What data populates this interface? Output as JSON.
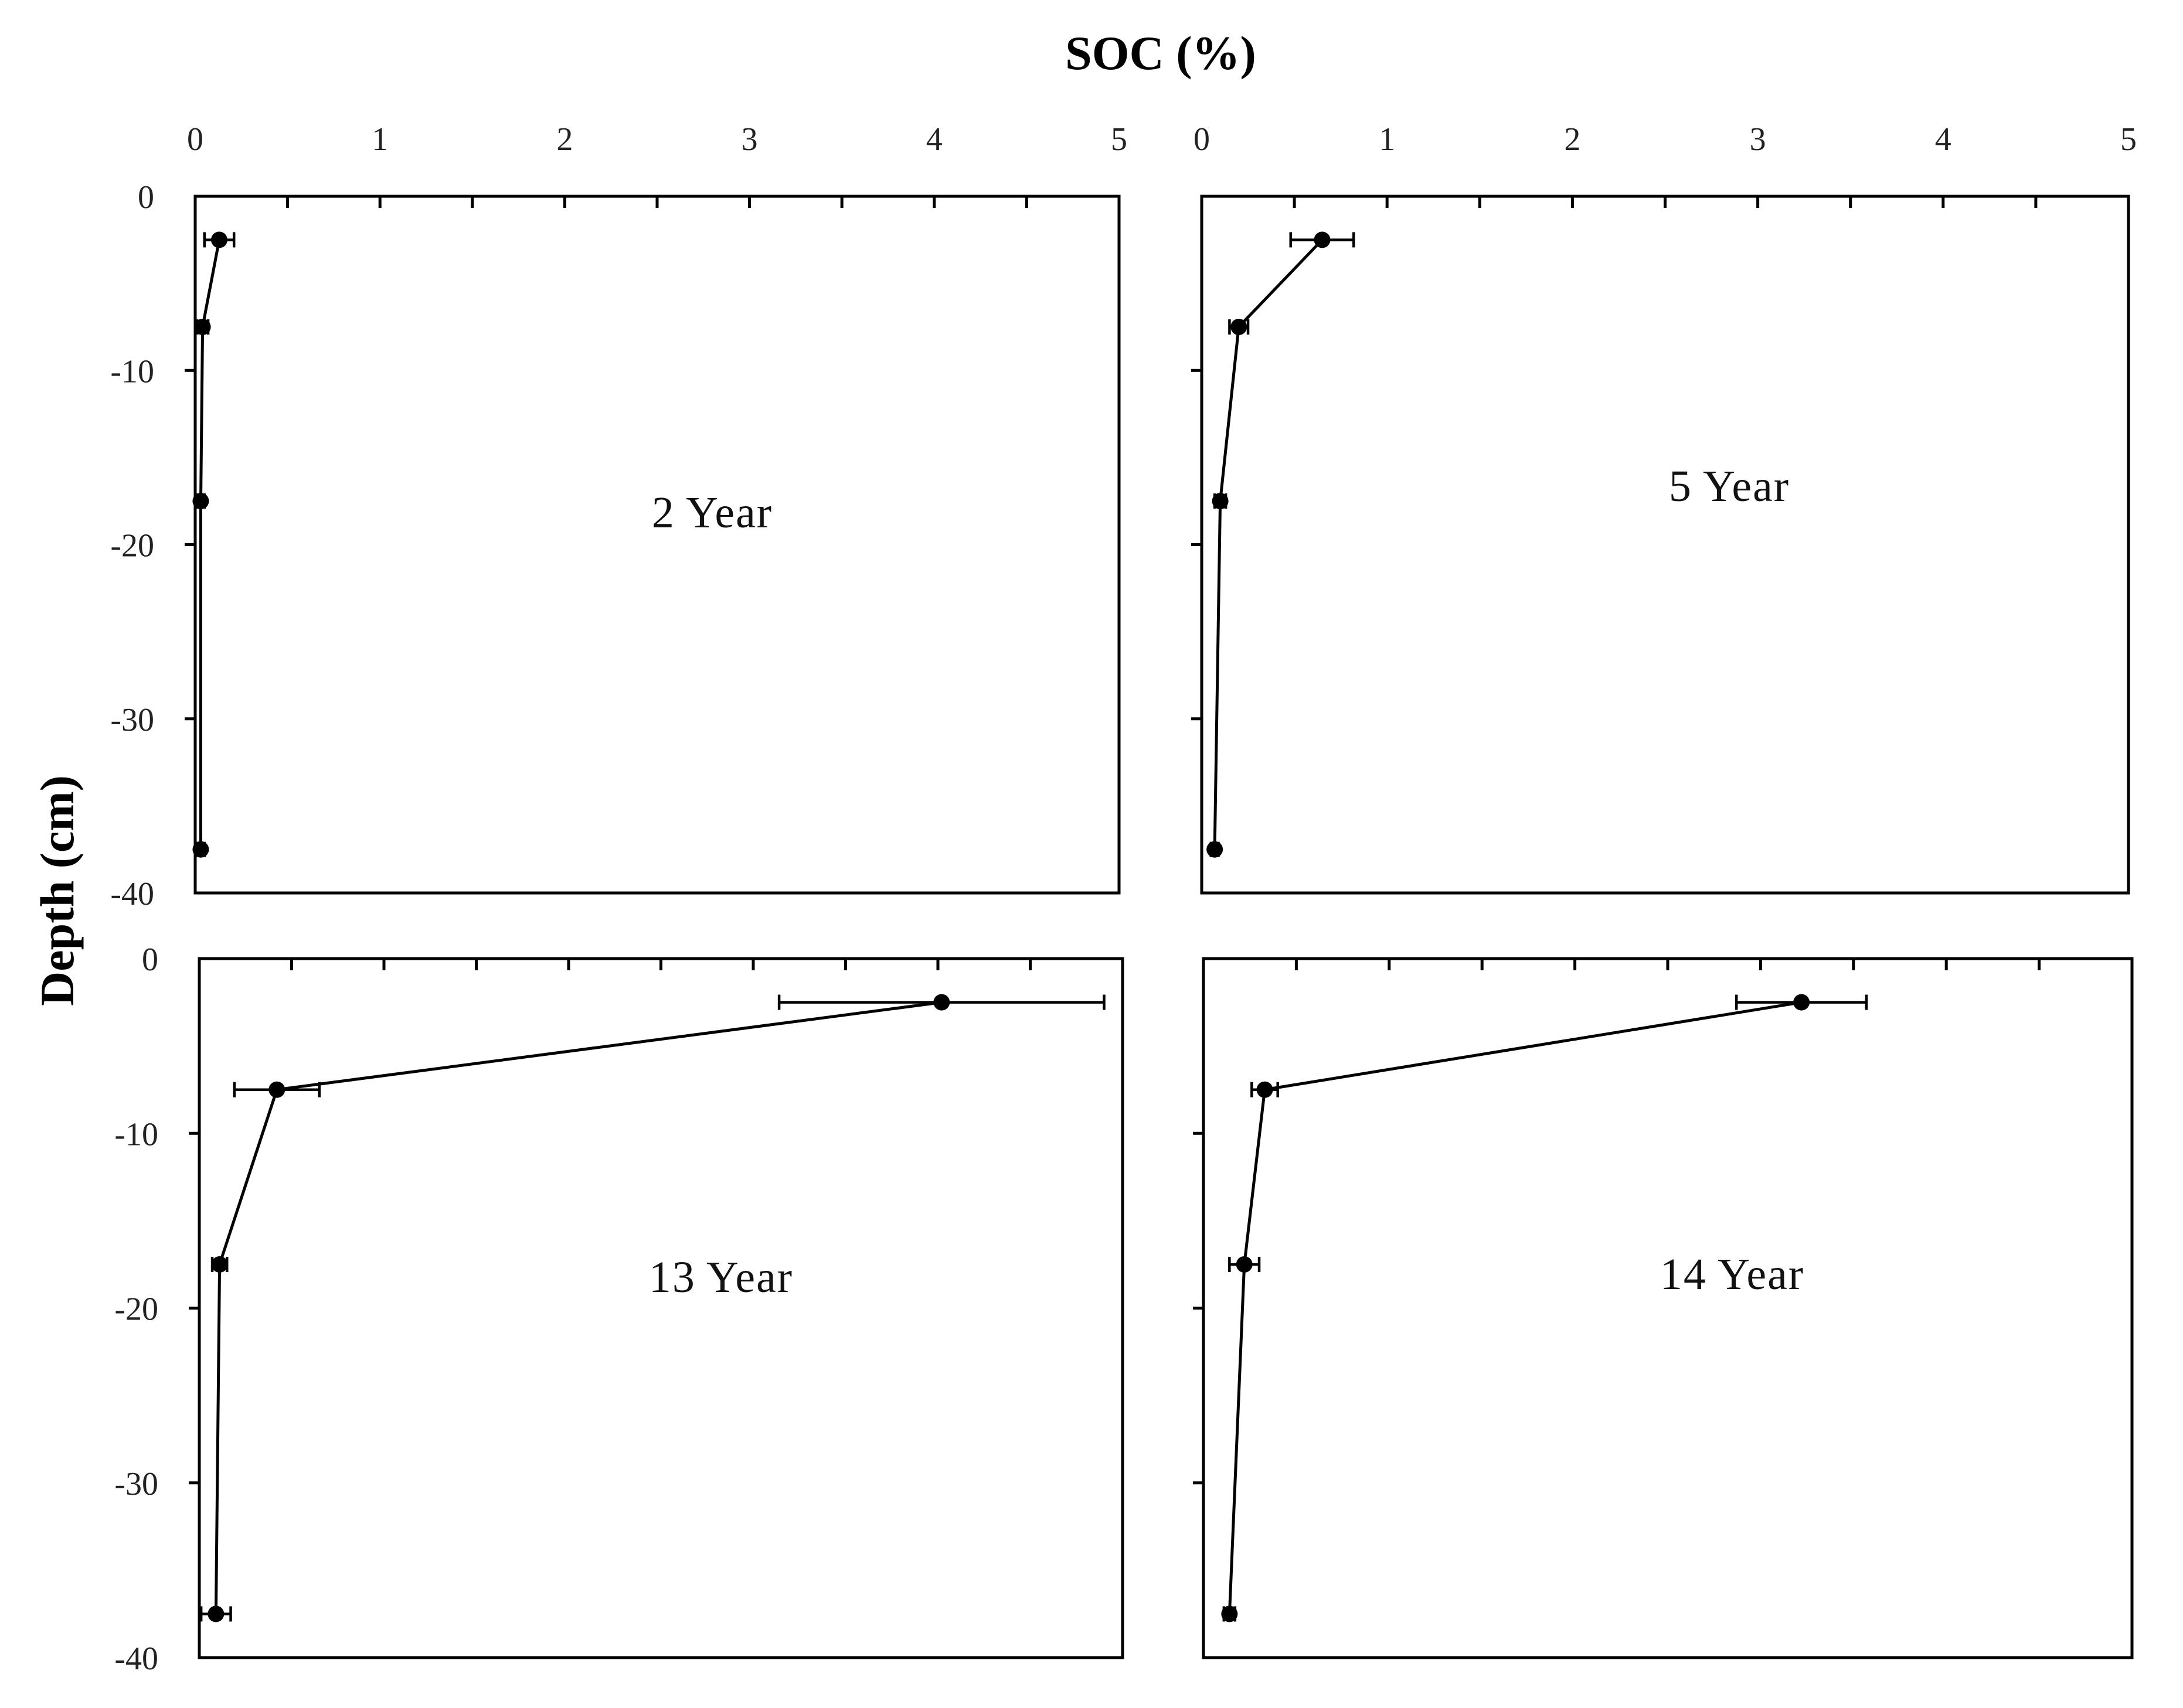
{
  "chart_data": {
    "x_axis_label": "SOC (%)",
    "y_axis_label": "Depth (cm)",
    "x_ticks": [
      "0",
      "1",
      "2",
      "3",
      "4",
      "5"
    ],
    "y_ticks": [
      "0",
      "-10",
      "-20",
      "-30",
      "-40"
    ],
    "xlim": [
      0,
      5
    ],
    "ylim": [
      -40,
      0
    ],
    "panels": [
      {
        "type": "line",
        "label": "2 Year",
        "x_tick_labels_shown": true,
        "points": [
          {
            "x": 0.13,
            "y": -2.5,
            "err": 0.08
          },
          {
            "x": 0.04,
            "y": -7.5,
            "err": 0.03
          },
          {
            "x": 0.03,
            "y": -17.5,
            "err": 0.02
          },
          {
            "x": 0.03,
            "y": -37.5,
            "err": 0.02
          }
        ]
      },
      {
        "type": "line",
        "label": "5 Year",
        "x_tick_labels_shown": true,
        "points": [
          {
            "x": 0.65,
            "y": -2.5,
            "err": 0.17
          },
          {
            "x": 0.2,
            "y": -7.5,
            "err": 0.05
          },
          {
            "x": 0.1,
            "y": -17.5,
            "err": 0.03
          },
          {
            "x": 0.07,
            "y": -37.5,
            "err": 0.02
          }
        ]
      },
      {
        "type": "line",
        "label": "13 Year",
        "x_tick_labels_shown": false,
        "points": [
          {
            "x": 4.02,
            "y": -2.5,
            "err": 0.88
          },
          {
            "x": 0.42,
            "y": -7.5,
            "err": 0.23
          },
          {
            "x": 0.11,
            "y": -17.5,
            "err": 0.04
          },
          {
            "x": 0.09,
            "y": -37.5,
            "err": 0.08
          }
        ]
      },
      {
        "type": "line",
        "label": "14 Year",
        "x_tick_labels_shown": false,
        "points": [
          {
            "x": 3.22,
            "y": -2.5,
            "err": 0.35
          },
          {
            "x": 0.33,
            "y": -7.5,
            "err": 0.07
          },
          {
            "x": 0.22,
            "y": -17.5,
            "err": 0.08
          },
          {
            "x": 0.14,
            "y": -37.5,
            "err": 0.03
          }
        ]
      }
    ]
  }
}
